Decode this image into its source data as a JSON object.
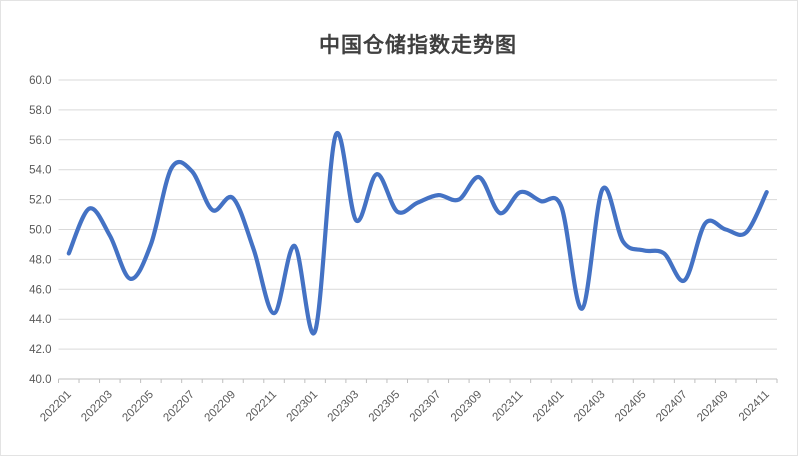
{
  "chart_data": {
    "type": "line",
    "title": "中国仓储指数走势图",
    "x": [
      "202201",
      "202202",
      "202203",
      "202204",
      "202205",
      "202206",
      "202207",
      "202208",
      "202209",
      "202210",
      "202211",
      "202212",
      "202301",
      "202302",
      "202303",
      "202304",
      "202305",
      "202306",
      "202307",
      "202308",
      "202309",
      "202310",
      "202311",
      "202312",
      "202401",
      "202402",
      "202403",
      "202404",
      "202405",
      "202406",
      "202407",
      "202408",
      "202409",
      "202410",
      "202411"
    ],
    "series": [
      {
        "values": [
          48.4,
          51.4,
          49.6,
          46.7,
          49.0,
          54.1,
          53.9,
          51.3,
          52.1,
          48.7,
          44.4,
          48.9,
          43.2,
          56.3,
          50.6,
          53.7,
          51.2,
          51.8,
          52.3,
          52.0,
          53.5,
          51.1,
          52.5,
          51.9,
          51.5,
          44.7,
          52.7,
          49.2,
          48.6,
          48.4,
          46.6,
          50.4,
          50.0,
          49.8,
          52.5
        ]
      }
    ],
    "x_tick_labels_shown": [
      "202201",
      "202203",
      "202205",
      "202207",
      "202209",
      "202211",
      "202301",
      "202303",
      "202305",
      "202307",
      "202309",
      "202311",
      "202401",
      "202403",
      "202405",
      "202407",
      "202409",
      "202411"
    ],
    "y_tick_labels": [
      "60.0",
      "58.0",
      "56.0",
      "54.0",
      "52.0",
      "50.0",
      "48.0",
      "46.0",
      "44.0",
      "42.0",
      "40.0"
    ],
    "ylim": [
      40.0,
      60.0
    ],
    "y_tick_step": 2.0,
    "grid": true,
    "smooth": true,
    "legend": "none",
    "line_color": "#4472C4",
    "gridline_color": "#D9D9D9",
    "axis_line_color": "#BFBFBF",
    "tick_label_color": "#595959",
    "title_color": "#404040",
    "background_color": "#FFFFFF"
  }
}
